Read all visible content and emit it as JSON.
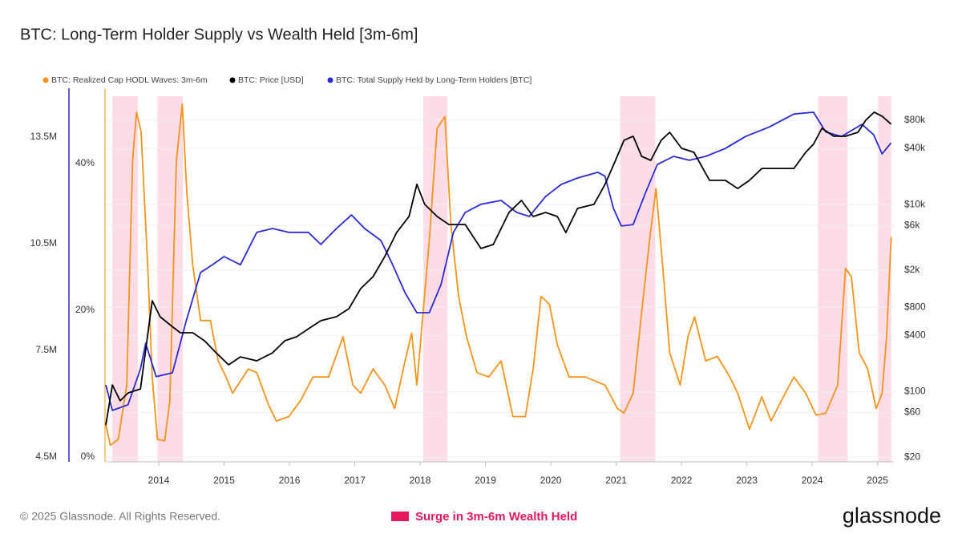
{
  "chart_data": {
    "type": "line",
    "title": "BTC: Long-Term Holder Supply vs Wealth Held [3m-6m]",
    "xlim": [
      2013.19,
      2025.25
    ],
    "xticks": [
      2014,
      2015,
      2016,
      2017,
      2018,
      2019,
      2020,
      2021,
      2022,
      2023,
      2024,
      2025
    ],
    "ylim": [
      4365000,
      14877000
    ],
    "yticks": [
      {
        "value": 4500000,
        "label": "4.5M"
      },
      {
        "value": 7500000,
        "label": "7.5M"
      },
      {
        "value": 10500000,
        "label": "10.5M"
      },
      {
        "value": 13500000,
        "label": "13.5M"
      }
    ],
    "y2lim": [
      -0.66,
      50.27
    ],
    "y2ticks": [
      {
        "value": 0,
        "label": "0%"
      },
      {
        "value": 20,
        "label": "20%"
      },
      {
        "value": 40,
        "label": "40%"
      }
    ],
    "y3lim": [
      17.8,
      176000
    ],
    "y3_log": true,
    "y3ticks": [
      {
        "value": 20,
        "label": "$20"
      },
      {
        "value": 60,
        "label": "$60"
      },
      {
        "value": 100,
        "label": "$100"
      },
      {
        "value": 400,
        "label": "$400"
      },
      {
        "value": 800,
        "label": "$800"
      },
      {
        "value": 2000,
        "label": "$2k"
      },
      {
        "value": 6000,
        "label": "$6k"
      },
      {
        "value": 10000,
        "label": "$10k"
      },
      {
        "value": 40000,
        "label": "$40k"
      },
      {
        "value": 80000,
        "label": "$80k"
      }
    ],
    "grid": true,
    "highlight": {
      "label": "Surge in 3m-6m Wealth Held",
      "color": "#e8175d",
      "ranges": [
        [
          2013.29,
          2013.68
        ],
        [
          2013.98,
          2014.37
        ],
        [
          2018.05,
          2018.42
        ],
        [
          2021.06,
          2021.6
        ],
        [
          2024.09,
          2024.54
        ],
        [
          2025.01,
          2025.21
        ]
      ]
    },
    "series": [
      {
        "name": "BTC: Realized Cap HODL Waves: 3m-6m",
        "color": "#f7931a",
        "axis": "y2",
        "x": [
          2013.19,
          2013.26,
          2013.38,
          2013.51,
          2013.6,
          2013.66,
          2013.73,
          2013.83,
          2013.9,
          2013.98,
          2014.09,
          2014.17,
          2014.27,
          2014.36,
          2014.43,
          2014.52,
          2014.64,
          2014.79,
          2014.91,
          2015.03,
          2015.13,
          2015.37,
          2015.5,
          2015.68,
          2015.8,
          2015.99,
          2016.17,
          2016.36,
          2016.6,
          2016.82,
          2016.97,
          2017.09,
          2017.28,
          2017.46,
          2017.61,
          2017.77,
          2017.87,
          2017.95,
          2018.14,
          2018.26,
          2018.38,
          2018.47,
          2018.59,
          2018.71,
          2018.87,
          2019.05,
          2019.24,
          2019.42,
          2019.61,
          2019.73,
          2019.85,
          2019.98,
          2020.1,
          2020.28,
          2020.53,
          2020.83,
          2021.02,
          2021.12,
          2021.26,
          2021.39,
          2021.51,
          2021.61,
          2021.71,
          2021.82,
          2021.98,
          2022.1,
          2022.2,
          2022.37,
          2022.55,
          2022.74,
          2022.86,
          2023.04,
          2023.23,
          2023.37,
          2023.53,
          2023.72,
          2023.9,
          2024.06,
          2024.21,
          2024.39,
          2024.51,
          2024.6,
          2024.72,
          2024.85,
          2024.98,
          2025.07,
          2025.14,
          2025.21
        ],
        "values": [
          4.4,
          1.6,
          2.4,
          9.8,
          40.4,
          47,
          44.3,
          26.2,
          10.9,
          2.4,
          2.2,
          7.7,
          40.4,
          48.1,
          36,
          26.2,
          18.6,
          18.6,
          13.1,
          10.9,
          8.7,
          12,
          11.5,
          7.1,
          4.9,
          5.5,
          7.7,
          10.9,
          10.9,
          16.4,
          9.8,
          8.7,
          12,
          9.8,
          6.6,
          13.1,
          16.9,
          9.8,
          29.5,
          44.8,
          46.4,
          31.7,
          21.9,
          16.4,
          11.5,
          10.9,
          13.1,
          5.5,
          5.5,
          12,
          21.9,
          20.8,
          15.3,
          10.9,
          10.9,
          9.8,
          6.6,
          6,
          8.7,
          19.7,
          29.5,
          36.6,
          26.2,
          14.2,
          9.8,
          16.4,
          19.1,
          13.1,
          13.7,
          10.9,
          8.7,
          3.8,
          8.2,
          4.9,
          7.7,
          10.9,
          8.7,
          5.7,
          6,
          9.8,
          25.7,
          24.6,
          14.2,
          12,
          6.6,
          8.7,
          16.4,
          30
        ]
      },
      {
        "name": "BTC: Price [USD]",
        "color": "#000000",
        "axis": "y3",
        "x": [
          2013.19,
          2013.29,
          2013.41,
          2013.53,
          2013.72,
          2013.9,
          2014.02,
          2014.17,
          2014.33,
          2014.52,
          2014.7,
          2014.88,
          2015.07,
          2015.25,
          2015.5,
          2015.74,
          2015.93,
          2016.11,
          2016.29,
          2016.48,
          2016.72,
          2016.91,
          2017.09,
          2017.28,
          2017.46,
          2017.64,
          2017.83,
          2017.95,
          2018.07,
          2018.26,
          2018.44,
          2018.69,
          2018.93,
          2019.12,
          2019.36,
          2019.55,
          2019.73,
          2019.92,
          2020.1,
          2020.23,
          2020.41,
          2020.66,
          2020.83,
          2020.99,
          2021.12,
          2021.26,
          2021.39,
          2021.53,
          2021.69,
          2021.82,
          2022.0,
          2022.19,
          2022.43,
          2022.67,
          2022.86,
          2023.04,
          2023.23,
          2023.47,
          2023.72,
          2023.9,
          2024.02,
          2024.15,
          2024.33,
          2024.51,
          2024.7,
          2024.82,
          2024.95,
          2025.07,
          2025.21
        ],
        "values": [
          44,
          118,
          80,
          97,
          107,
          940,
          634,
          520,
          427,
          427,
          351,
          260,
          194,
          236,
          214,
          260,
          351,
          387,
          471,
          574,
          634,
          772,
          1265,
          1700,
          2790,
          5030,
          7480,
          16500,
          10070,
          7480,
          6140,
          6140,
          3400,
          3750,
          8260,
          11100,
          7480,
          8260,
          7480,
          5030,
          9120,
          10070,
          16500,
          29800,
          48900,
          54000,
          32900,
          29800,
          48900,
          59400,
          40100,
          36300,
          18200,
          18200,
          14900,
          18200,
          24400,
          24400,
          24400,
          36300,
          44300,
          65600,
          54000,
          54000,
          59400,
          80000,
          97500,
          88300,
          72500
        ]
      },
      {
        "name": "BTC: Total Supply Held by Long-Term Holders [BTC]",
        "color": "#2b2bd6",
        "axis": "y",
        "x": [
          2013.19,
          2013.29,
          2013.53,
          2013.72,
          2013.8,
          2013.96,
          2014.21,
          2014.42,
          2014.64,
          2014.82,
          2015.0,
          2015.25,
          2015.5,
          2015.74,
          2015.99,
          2016.29,
          2016.48,
          2016.72,
          2016.95,
          2017.15,
          2017.4,
          2017.58,
          2017.77,
          2017.95,
          2018.14,
          2018.32,
          2018.51,
          2018.69,
          2018.93,
          2019.24,
          2019.48,
          2019.67,
          2019.92,
          2020.16,
          2020.41,
          2020.72,
          2020.83,
          2020.96,
          2021.08,
          2021.26,
          2021.45,
          2021.63,
          2021.88,
          2022.12,
          2022.37,
          2022.67,
          2022.98,
          2023.35,
          2023.72,
          2024.02,
          2024.21,
          2024.45,
          2024.76,
          2024.94,
          2025.07,
          2025.21
        ],
        "values": [
          6530000,
          5810000,
          5970000,
          6980000,
          7700000,
          6760000,
          6870000,
          8330000,
          9690000,
          9910000,
          10140000,
          9910000,
          10820000,
          10930000,
          10820000,
          10820000,
          10480000,
          10930000,
          11310000,
          10930000,
          10590000,
          9910000,
          9120000,
          8560000,
          8560000,
          9350000,
          10820000,
          11380000,
          11610000,
          11720000,
          11380000,
          11270000,
          11830000,
          12170000,
          12350000,
          12510000,
          12400000,
          11490000,
          11000000,
          11040000,
          11940000,
          12730000,
          12960000,
          12850000,
          12960000,
          13180000,
          13520000,
          13790000,
          14150000,
          14200000,
          13640000,
          13520000,
          13860000,
          13570000,
          13030000,
          13340000
        ]
      }
    ]
  },
  "footer": {
    "copyright": "© 2025 Glassnode. All Rights Reserved.",
    "brand": "glassnode"
  }
}
